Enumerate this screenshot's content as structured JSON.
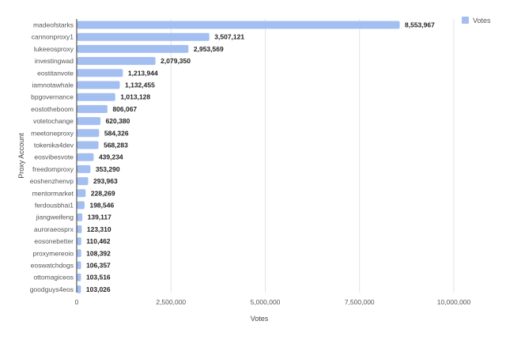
{
  "chart_data": {
    "type": "bar",
    "orientation": "horizontal",
    "title": "",
    "xlabel": "Votes",
    "ylabel": "Proxy Account",
    "xlim": [
      0,
      10000000
    ],
    "xticks": [
      0,
      2500000,
      5000000,
      7500000,
      10000000
    ],
    "xtick_labels": [
      "0",
      "2,500,000",
      "5,000,000",
      "7,500,000",
      "10,000,000"
    ],
    "grid": "vertical",
    "legend": {
      "position": "top-right"
    },
    "categories": [
      "madeofstarks",
      "cannonproxy1",
      "lukeeosproxy",
      "investingwad",
      "eostitanvote",
      "iamnotawhale",
      "bpgovernance",
      "eostotheboom",
      "votetochange",
      "meetoneproxy",
      "tokenika4dev",
      "eosvibesvote",
      "freedomproxy",
      "eoshenzhenvp",
      "mentormarket",
      "ferdousbhai1",
      "jiangweifeng",
      "auroraeosprx",
      "eosonebetter",
      "proxymereoio",
      "eoswatchdogs",
      "ottomagiceos",
      "goodguys4eos"
    ],
    "series": [
      {
        "name": "Votes",
        "color": "#a3bff2",
        "values": [
          8553967,
          3507121,
          2953569,
          2079350,
          1213944,
          1132455,
          1013128,
          806067,
          620380,
          584326,
          568283,
          439234,
          353290,
          293963,
          228269,
          198546,
          139117,
          123310,
          110462,
          108392,
          106357,
          103516,
          103026
        ],
        "value_labels": [
          "8,553,967",
          "3,507,121",
          "2,953,569",
          "2,079,350",
          "1,213,944",
          "1,132,455",
          "1,013,128",
          "806,067",
          "620,380",
          "584,326",
          "568,283",
          "439,234",
          "353,290",
          "293,963",
          "228,269",
          "198,546",
          "139,117",
          "123,310",
          "110,462",
          "108,392",
          "106,357",
          "103,516",
          "103,026"
        ]
      }
    ]
  }
}
